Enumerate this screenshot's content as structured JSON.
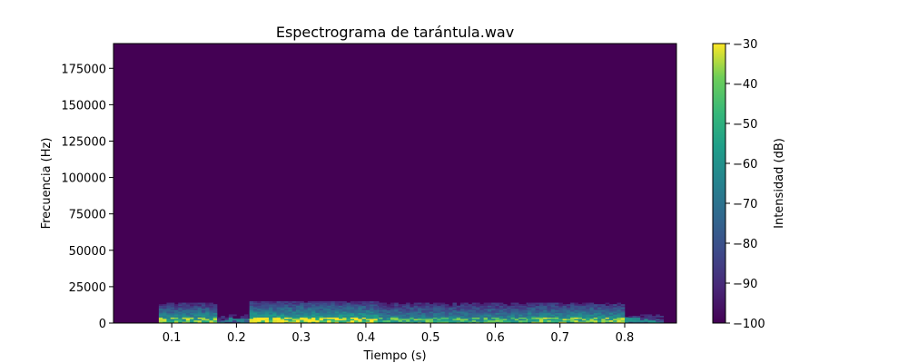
{
  "chart_data": {
    "type": "heatmap",
    "title": "Espectrograma de tarántula.wav",
    "xlabel": "Tiempo (s)",
    "ylabel": "Frecuencia (Hz)",
    "xlim": [
      0.01,
      0.88
    ],
    "ylim": [
      0,
      192000
    ],
    "xticks": [
      0.1,
      0.2,
      0.3,
      0.4,
      0.5,
      0.6,
      0.7,
      0.8
    ],
    "xtick_labels": [
      "0.1",
      "0.2",
      "0.3",
      "0.4",
      "0.5",
      "0.6",
      "0.7",
      "0.8"
    ],
    "yticks": [
      0,
      25000,
      50000,
      75000,
      100000,
      125000,
      150000,
      175000
    ],
    "ytick_labels": [
      "0",
      "25000",
      "50000",
      "75000",
      "100000",
      "125000",
      "150000",
      "175000"
    ],
    "colormap": "viridis",
    "colorbar": {
      "label": "Intensidad (dB)",
      "range": [
        -100,
        -30
      ],
      "ticks": [
        -30,
        -40,
        -50,
        -60,
        -70,
        -80,
        -90,
        -100
      ],
      "tick_labels": [
        "−30",
        "−40",
        "−50",
        "−60",
        "−70",
        "−80",
        "−90",
        "−100"
      ]
    },
    "background_db": -100,
    "activity_regions": [
      {
        "t_start": 0.08,
        "t_end": 0.17,
        "f_max_hz": 14000,
        "peak_db": -45
      },
      {
        "t_start": 0.17,
        "t_end": 0.22,
        "f_max_hz": 6000,
        "peak_db": -75
      },
      {
        "t_start": 0.22,
        "t_end": 0.42,
        "f_max_hz": 15000,
        "peak_db": -40
      },
      {
        "t_start": 0.42,
        "t_end": 0.65,
        "f_max_hz": 14000,
        "peak_db": -50
      },
      {
        "t_start": 0.65,
        "t_end": 0.8,
        "f_max_hz": 14000,
        "peak_db": -45
      },
      {
        "t_start": 0.8,
        "t_end": 0.86,
        "f_max_hz": 6000,
        "peak_db": -70
      }
    ]
  }
}
